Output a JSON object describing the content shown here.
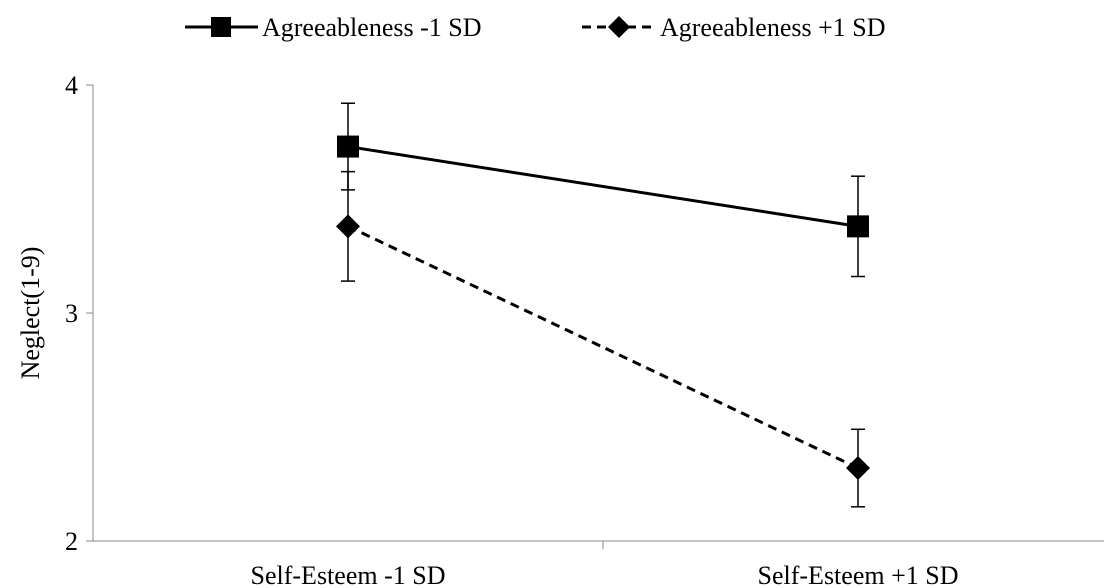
{
  "chart_data": {
    "type": "line",
    "title": "",
    "xlabel": "",
    "ylabel": "Neglect(1-9)",
    "categories": [
      "Self-Esteem -1 SD",
      "Self-Esteem +1 SD"
    ],
    "ylim": [
      2,
      4
    ],
    "yticks": [
      2,
      3,
      4
    ],
    "grid": false,
    "legend_position": "top",
    "series": [
      {
        "name": "Agreeableness -1 SD",
        "values": [
          3.73,
          3.38
        ],
        "error": [
          0.19,
          0.22
        ],
        "marker": "square",
        "line_style": "solid",
        "color": "#000000"
      },
      {
        "name": "Agreeableness +1 SD",
        "values": [
          3.38,
          2.32
        ],
        "error": [
          0.24,
          0.17
        ],
        "marker": "diamond",
        "line_style": "dashed",
        "color": "#000000"
      }
    ]
  }
}
